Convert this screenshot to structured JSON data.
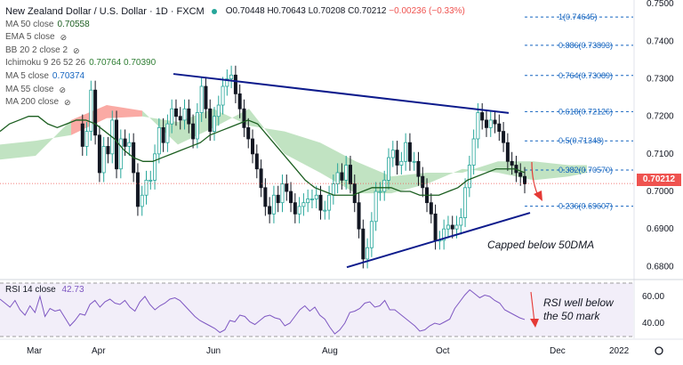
{
  "header": {
    "title": "New Zealand Dollar / U.S. Dollar · 1D · FXCM",
    "ohlc": {
      "o": "O0.70448",
      "h": "H0.70643",
      "l": "L0.70208",
      "c": "C0.70212",
      "chg": "−0.00236 (−0.33%)"
    }
  },
  "indicators": [
    {
      "label": "MA 50 close",
      "value": "0.70558",
      "eye": false
    },
    {
      "label": "EMA 5 close",
      "value": "",
      "eye": true
    },
    {
      "label": "BB 20 2 close 2",
      "value": "",
      "eye": true
    },
    {
      "label": "Ichimoku 9 26 52 26",
      "value": "0.70764  0.70390",
      "eye": false
    },
    {
      "label": "MA 5 close",
      "value": "0.70374",
      "eye": false
    },
    {
      "label": "MA 55 close",
      "value": "",
      "eye": true
    },
    {
      "label": "MA 200 close",
      "value": "",
      "eye": true
    }
  ],
  "price_label": "0.70212",
  "annotations": {
    "capped": "Capped below 50DMA",
    "rsi_note": "RSI well below\nthe 50 mark"
  },
  "rsi": {
    "label": "RSI 14 close",
    "value": "42.73",
    "ticks": [
      "60.00",
      "40.00"
    ]
  },
  "chart_data": {
    "type": "candlestick",
    "title": "New Zealand Dollar / U.S. Dollar · 1D · FXCM",
    "xlabels": [
      "Mar",
      "Apr",
      "Jun",
      "Aug",
      "Oct",
      "Dec",
      "2022"
    ],
    "y_ticks": [
      0.68,
      0.69,
      0.7,
      0.71,
      0.72,
      0.73,
      0.74,
      0.75
    ],
    "ylim": [
      0.677,
      0.751
    ],
    "fib_levels": [
      {
        "label": "1(0.74645)",
        "value": 0.74645
      },
      {
        "label": "0.886(0.73893)",
        "value": 0.73893
      },
      {
        "label": "0.764(0.73089)",
        "value": 0.73089
      },
      {
        "label": "0.618(0.72126)",
        "value": 0.72126
      },
      {
        "label": "0.5(0.71348)",
        "value": 0.71348
      },
      {
        "label": "0.382(0.70570)",
        "value": 0.7057
      },
      {
        "label": "0.236(0.69607)",
        "value": 0.69607
      }
    ],
    "close_path": [
      0.718,
      0.712,
      0.716,
      0.727,
      0.715,
      0.705,
      0.712,
      0.71,
      0.719,
      0.706,
      0.714,
      0.712,
      0.713,
      0.705,
      0.696,
      0.699,
      0.703,
      0.703,
      0.71,
      0.717,
      0.713,
      0.718,
      0.722,
      0.72,
      0.719,
      0.722,
      0.718,
      0.714,
      0.721,
      0.728,
      0.722,
      0.716,
      0.72,
      0.723,
      0.728,
      0.73,
      0.731,
      0.726,
      0.722,
      0.717,
      0.714,
      0.71,
      0.706,
      0.701,
      0.696,
      0.694,
      0.699,
      0.697,
      0.702,
      0.7,
      0.697,
      0.694,
      0.696,
      0.697,
      0.698,
      0.698,
      0.699,
      0.695,
      0.695,
      0.699,
      0.702,
      0.705,
      0.703,
      0.707,
      0.702,
      0.697,
      0.69,
      0.682,
      0.685,
      0.692,
      0.7,
      0.7,
      0.703,
      0.709,
      0.711,
      0.707,
      0.708,
      0.713,
      0.708,
      0.708,
      0.704,
      0.701,
      0.697,
      0.694,
      0.687,
      0.687,
      0.69,
      0.691,
      0.69,
      0.691,
      0.693,
      0.701,
      0.707,
      0.714,
      0.721,
      0.719,
      0.717,
      0.719,
      0.718,
      0.716,
      0.713,
      0.708,
      0.707,
      0.705,
      0.704,
      0.702
    ],
    "ma50": [
      0.716,
      0.718,
      0.719,
      0.72,
      0.72,
      0.718,
      0.717,
      0.718,
      0.719,
      0.719,
      0.718,
      0.716,
      0.714,
      0.711,
      0.709,
      0.708,
      0.708,
      0.709,
      0.71,
      0.711,
      0.712,
      0.713,
      0.715,
      0.716,
      0.717,
      0.718,
      0.719,
      0.718,
      0.715,
      0.712,
      0.709,
      0.706,
      0.703,
      0.701,
      0.7,
      0.699,
      0.699,
      0.699,
      0.7,
      0.701,
      0.701,
      0.701,
      0.7,
      0.7,
      0.699,
      0.699,
      0.699,
      0.7,
      0.701,
      0.703,
      0.704,
      0.705,
      0.706,
      0.706,
      0.706,
      0.705
    ],
    "rsi_series": [
      58,
      55,
      52,
      57,
      50,
      46,
      53,
      48,
      60,
      45,
      51,
      49,
      50,
      44,
      38,
      42,
      47,
      46,
      54,
      57,
      52,
      56,
      58,
      55,
      54,
      57,
      52,
      49,
      56,
      60,
      54,
      50,
      53,
      55,
      58,
      59,
      57,
      53,
      49,
      45,
      42,
      40,
      38,
      36,
      33,
      35,
      42,
      41,
      46,
      45,
      41,
      39,
      42,
      45,
      46,
      44,
      43,
      38,
      40,
      45,
      50,
      53,
      49,
      52,
      46,
      43,
      37,
      32,
      35,
      40,
      48,
      49,
      51,
      55,
      56,
      52,
      53,
      57,
      50,
      50,
      47,
      44,
      41,
      38,
      34,
      35,
      38,
      40,
      39,
      41,
      43,
      51,
      56,
      61,
      65,
      62,
      59,
      61,
      60,
      57,
      55,
      50,
      48,
      46,
      44,
      42.7
    ],
    "rsi_ylim": [
      30,
      70
    ]
  }
}
